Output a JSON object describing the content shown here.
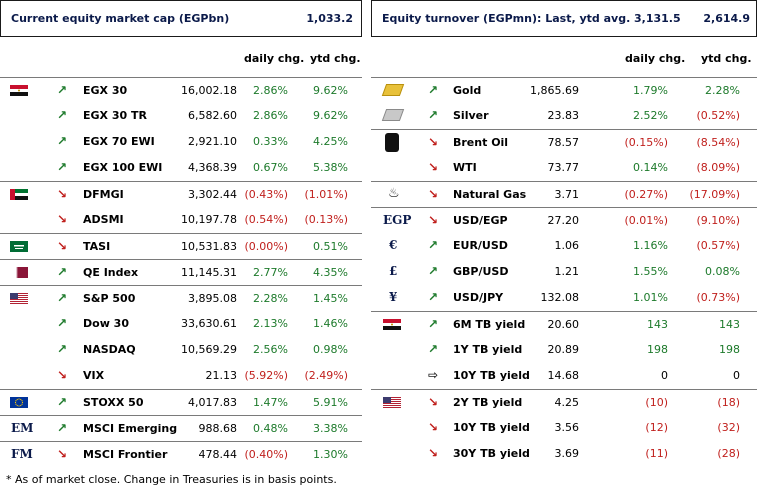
{
  "left": {
    "header": {
      "title": "Current equity market cap (EGPbn)",
      "value": "1,033.2"
    },
    "columns": {
      "daily": "daily chg.",
      "ytd": "ytd chg."
    },
    "rows": [
      {
        "name": "EGX 30",
        "value": "16,002.18",
        "daily": "2.86%",
        "ytd": "9.62%",
        "dir": "up",
        "flag": "egypt"
      },
      {
        "name": "EGX 30 TR",
        "value": "6,582.60",
        "daily": "2.86%",
        "ytd": "9.62%",
        "dir": "up",
        "flag": ""
      },
      {
        "name": "EGX 70 EWI",
        "value": "2,921.10",
        "daily": "0.33%",
        "ytd": "4.25%",
        "dir": "up",
        "flag": ""
      },
      {
        "name": "EGX 100 EWI",
        "value": "4,368.39",
        "daily": "0.67%",
        "ytd": "5.38%",
        "dir": "up",
        "flag": ""
      },
      {
        "name": "DFMGI",
        "value": "3,302.44",
        "daily": "(0.43%)",
        "ytd": "(1.01%)",
        "dir": "down",
        "flag": "uae"
      },
      {
        "name": "ADSMI",
        "value": "10,197.78",
        "daily": "(0.54%)",
        "ytd": "(0.13%)",
        "dir": "down",
        "flag": ""
      },
      {
        "name": "TASI",
        "value": "10,531.83",
        "daily": "(0.00%)",
        "ytd": "0.51%",
        "dir": "down",
        "flag": "saudi"
      },
      {
        "name": "QE Index",
        "value": "11,145.31",
        "daily": "2.77%",
        "ytd": "4.35%",
        "dir": "up",
        "flag": "qatar"
      },
      {
        "name": "S&P 500",
        "value": "3,895.08",
        "daily": "2.28%",
        "ytd": "1.45%",
        "dir": "up",
        "flag": "usa"
      },
      {
        "name": "Dow 30",
        "value": "33,630.61",
        "daily": "2.13%",
        "ytd": "1.46%",
        "dir": "up",
        "flag": ""
      },
      {
        "name": "NASDAQ",
        "value": "10,569.29",
        "daily": "2.56%",
        "ytd": "0.98%",
        "dir": "up",
        "flag": ""
      },
      {
        "name": "VIX",
        "value": "21.13",
        "daily": "(5.92%)",
        "ytd": "(2.49%)",
        "dir": "down",
        "flag": ""
      },
      {
        "name": "STOXX 50",
        "value": "4,017.83",
        "daily": "1.47%",
        "ytd": "5.91%",
        "dir": "up",
        "flag": "eu"
      },
      {
        "name": "MSCI Emerging",
        "value": "988.68",
        "daily": "0.48%",
        "ytd": "3.38%",
        "dir": "up",
        "flag": "",
        "sym": "EM"
      },
      {
        "name": "MSCI Frontier",
        "value": "478.44",
        "daily": "(0.40%)",
        "ytd": "1.30%",
        "dir": "down",
        "flag": "",
        "sym": "FM"
      }
    ]
  },
  "right": {
    "header": {
      "title": "Equity turnover (EGPmn): Last, ytd avg.",
      "last": "3,131.5",
      "avg": "2,614.9"
    },
    "columns": {
      "daily": "daily chg.",
      "ytd": "ytd chg."
    },
    "rows": [
      {
        "name": "Gold",
        "value": "1,865.69",
        "daily": "1.79%",
        "ytd": "2.28%",
        "dir": "up",
        "icon": "gold"
      },
      {
        "name": "Silver",
        "value": "23.83",
        "daily": "2.52%",
        "ytd": "(0.52%)",
        "dir": "up",
        "icon": "silver"
      },
      {
        "name": "Brent Oil",
        "value": "78.57",
        "daily": "(0.15%)",
        "ytd": "(8.54%)",
        "dir": "down",
        "icon": "barrel"
      },
      {
        "name": "WTI",
        "value": "73.77",
        "daily": "0.14%",
        "ytd": "(8.09%)",
        "dir": "down",
        "icon": ""
      },
      {
        "name": "Natural Gas",
        "value": "3.71",
        "daily": "(0.27%)",
        "ytd": "(17.09%)",
        "dir": "down",
        "icon": "flame"
      },
      {
        "name": "USD/EGP",
        "value": "27.20",
        "daily": "(0.01%)",
        "ytd": "(9.10%)",
        "dir": "down",
        "sym": "EGP"
      },
      {
        "name": "EUR/USD",
        "value": "1.06",
        "daily": "1.16%",
        "ytd": "(0.57%)",
        "dir": "up",
        "sym": "€"
      },
      {
        "name": "GBP/USD",
        "value": "1.21",
        "daily": "1.55%",
        "ytd": "0.08%",
        "dir": "up",
        "sym": "£"
      },
      {
        "name": "USD/JPY",
        "value": "132.08",
        "daily": "1.01%",
        "ytd": "(0.73%)",
        "dir": "up",
        "sym": "¥"
      },
      {
        "name": "6M TB yield",
        "value": "20.60",
        "daily": "143",
        "ytd": "143",
        "dir": "up",
        "flag": "egypt"
      },
      {
        "name": "1Y TB yield",
        "value": "20.89",
        "daily": "198",
        "ytd": "198",
        "dir": "up",
        "flag": ""
      },
      {
        "name": "10Y TB yield",
        "value": "14.68",
        "daily": "0",
        "ytd": "0",
        "dir": "flat",
        "flag": ""
      },
      {
        "name": "2Y TB yield",
        "value": "4.25",
        "daily": "(10)",
        "ytd": "(18)",
        "dir": "down",
        "flag": "usa"
      },
      {
        "name": "10Y TB yield",
        "value": "3.56",
        "daily": "(12)",
        "ytd": "(32)",
        "dir": "down",
        "flag": ""
      },
      {
        "name": "30Y TB yield",
        "value": "3.69",
        "daily": "(11)",
        "ytd": "(28)",
        "dir": "down",
        "flag": ""
      }
    ]
  },
  "footnote": "* As of market close. Change in Treasuries is in basis points.",
  "colors": {
    "positive": "#1d7a2b",
    "negative": "#c0201d",
    "header_text": "#0b1a4a"
  }
}
